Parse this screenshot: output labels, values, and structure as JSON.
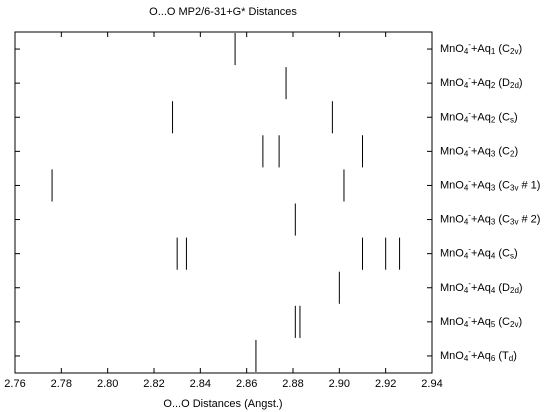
{
  "chart_data": {
    "type": "stick",
    "title": "O...O MP2/6-31+G* Distances",
    "x_label": "O...O Distances (Angst.)",
    "categories": [
      "MnO4-+Aq1 (C2v)",
      "MnO4-+Aq2 (D2d)",
      "MnO4-+Aq2 (Cs)",
      "MnO4-+Aq3 (C2)",
      "MnO4-+Aq3 (C3v # 1)",
      "MnO4-+Aq3 (C3v # 2)",
      "MnO4-+Aq4 (Cs)",
      "MnO4-+Aq4 (D2d)",
      "MnO4-+Aq5 (C2v)",
      "MnO4-+Aq6 (Td)"
    ],
    "values": [
      [
        2.855
      ],
      [
        2.877
      ],
      [
        2.828,
        2.897
      ],
      [
        2.867,
        2.874,
        2.91
      ],
      [
        2.776,
        2.902
      ],
      [
        2.881
      ],
      [
        2.83,
        2.834,
        2.91,
        2.92,
        2.926
      ],
      [
        2.9
      ],
      [
        2.881,
        2.883
      ],
      [
        2.864
      ]
    ],
    "color": "#000000",
    "xlim": [
      2.76,
      2.94
    ],
    "xticks": [
      2.76,
      2.78,
      {
        "value": 2.8,
        "label": "2.80"
      },
      2.82,
      2.84,
      2.86,
      2.88,
      {
        "value": 2.9,
        "label": "2.90"
      },
      2.92,
      2.94
    ]
  }
}
